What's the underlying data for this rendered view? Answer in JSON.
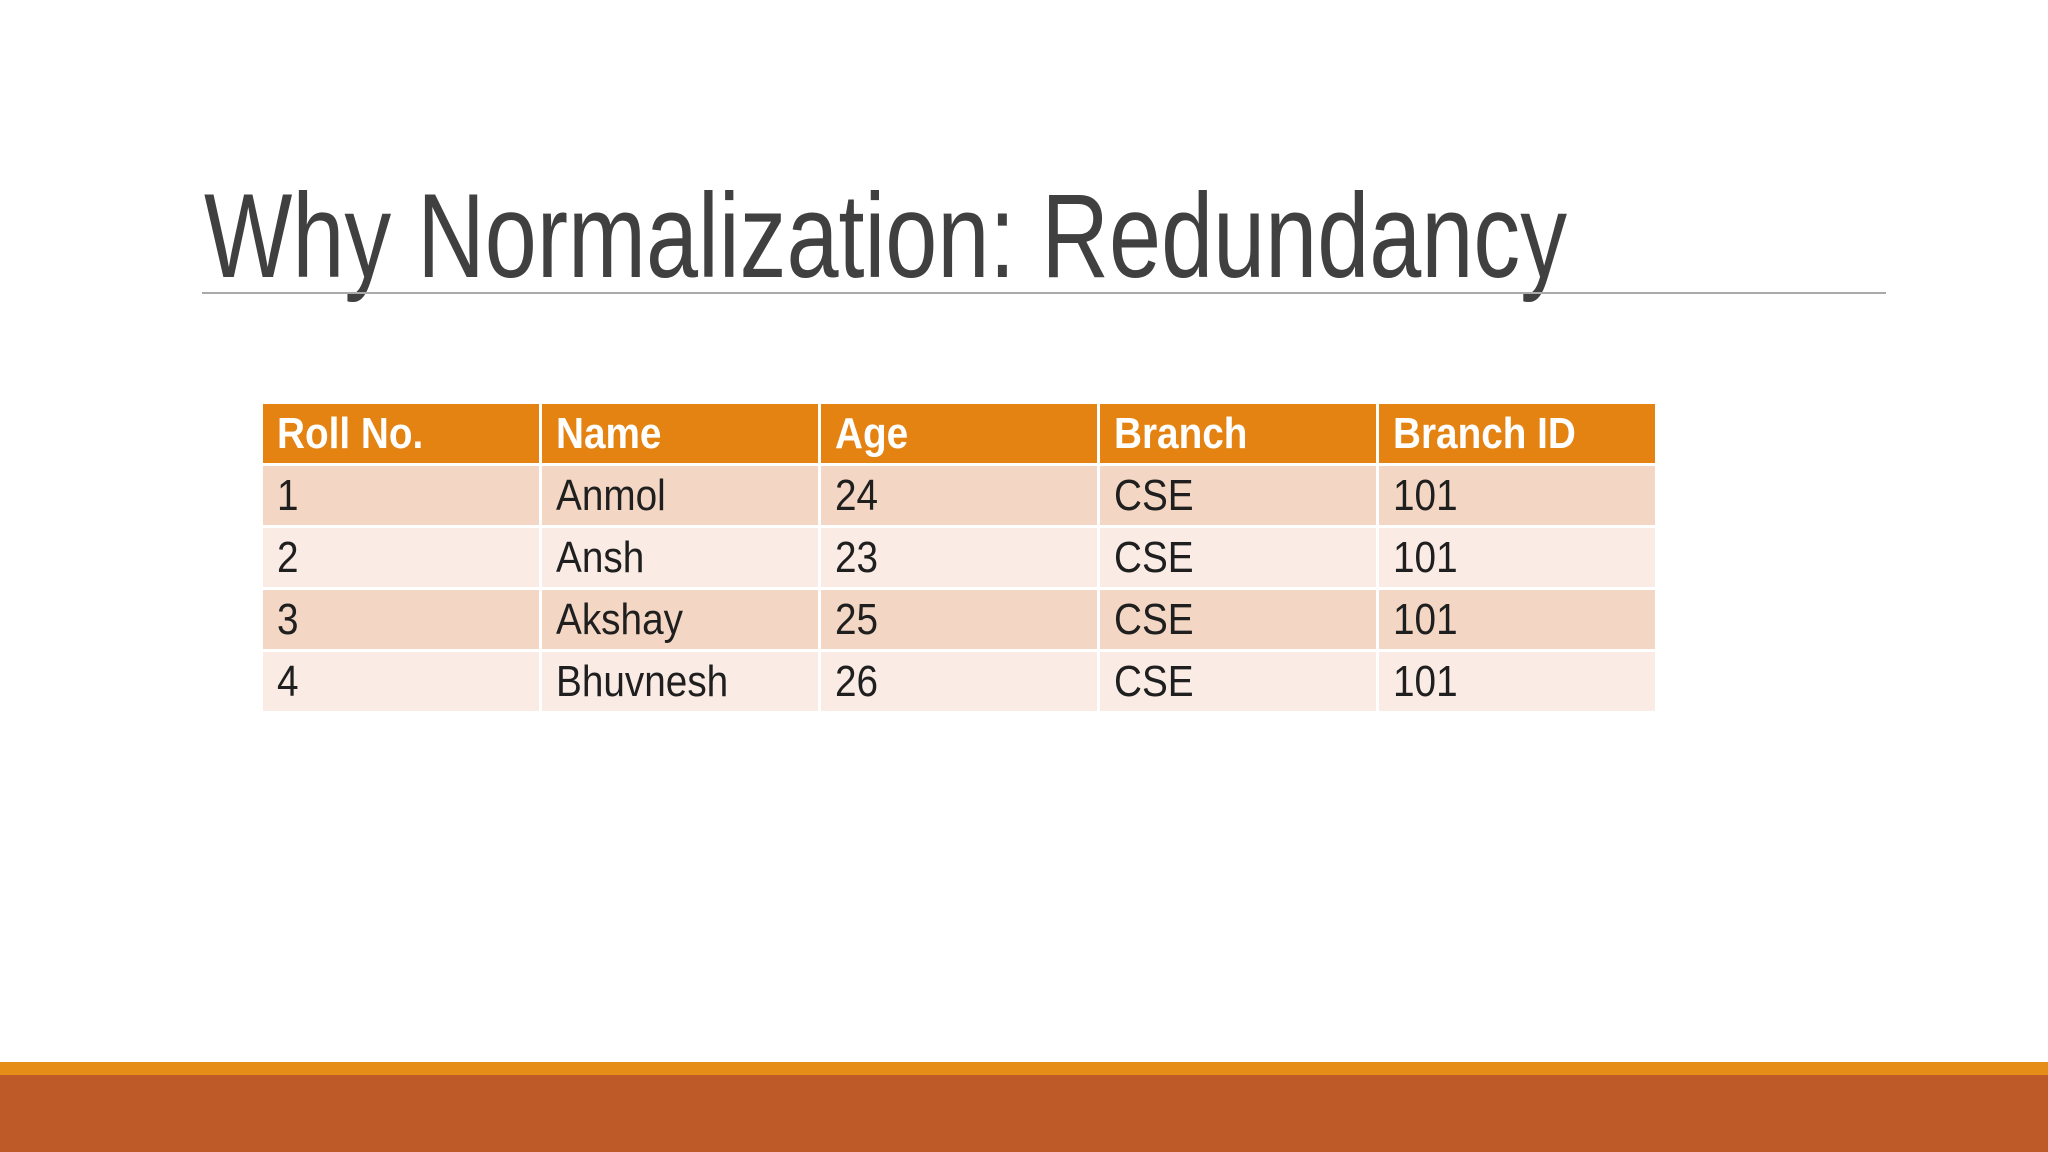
{
  "title": "Why Normalization: Redundancy",
  "table": {
    "columns": [
      "Roll No.",
      "Name",
      "Age",
      "Branch",
      "Branch ID"
    ],
    "rows": [
      [
        "1",
        "Anmol",
        "24",
        "CSE",
        "101"
      ],
      [
        "2",
        "Ansh",
        "23",
        "CSE",
        "101"
      ],
      [
        "3",
        "Akshay",
        "25",
        "CSE",
        "101"
      ],
      [
        "4",
        "Bhuvnesh",
        "26",
        "CSE",
        "101"
      ]
    ]
  },
  "colors": {
    "accent_orange": "#E48312",
    "footer_thin_band": "#E68D17",
    "footer_dark_band": "#BE5A28",
    "row_banded": "#F3D7C4",
    "row_plain": "#FAEBE5",
    "header_text": "#FFFFFF",
    "body_text": "#1F1F1F",
    "title_text": "#404040",
    "title_underline": "#AAAAAA"
  }
}
